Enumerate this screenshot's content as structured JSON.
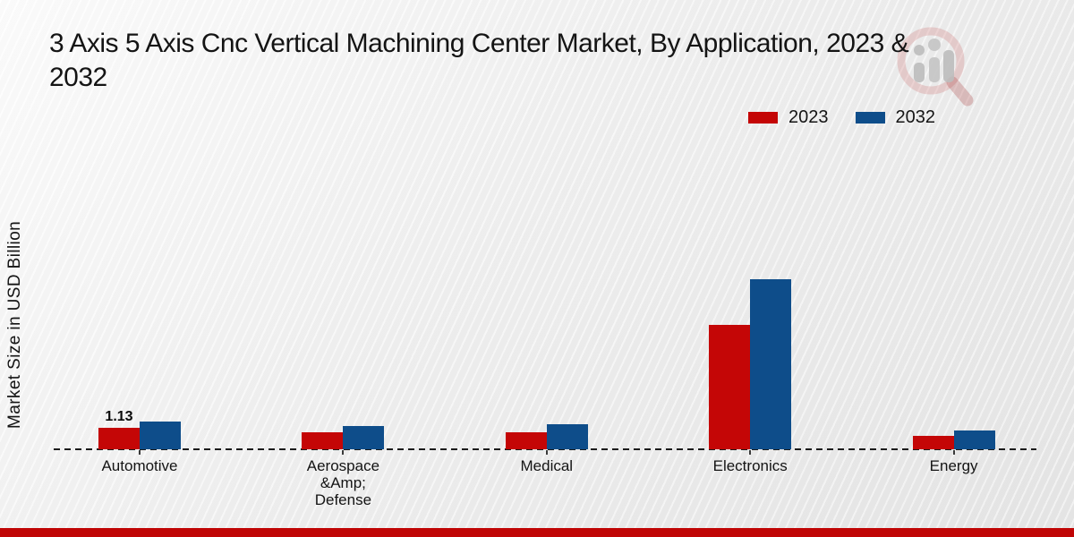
{
  "chart_data": {
    "type": "bar",
    "title": "3 Axis 5 Axis Cnc Vertical Machining Center Market, By Application, 2023 &\n2032",
    "ylabel": "Market Size in USD Billion",
    "xlabel": "",
    "categories": [
      "Automotive",
      "Aerospace\n&Amp;\nDefense",
      "Medical",
      "Electronics",
      "Energy"
    ],
    "series": [
      {
        "name": "2023",
        "color": "#c40606",
        "values": [
          1.13,
          0.9,
          0.9,
          6.53,
          0.71
        ]
      },
      {
        "name": "2032",
        "color": "#0e4d8a",
        "values": [
          1.45,
          1.24,
          1.3,
          8.95,
          0.99
        ]
      }
    ],
    "annotations": [
      {
        "category": "Automotive",
        "series": "2023",
        "text": "1.13"
      }
    ],
    "legend_position": "top-right",
    "grid": false,
    "baseline_style": "dashed"
  },
  "branding": {
    "watermark_icon": "magnifier-with-bars-logo",
    "footer_band_color": "#c00505"
  }
}
